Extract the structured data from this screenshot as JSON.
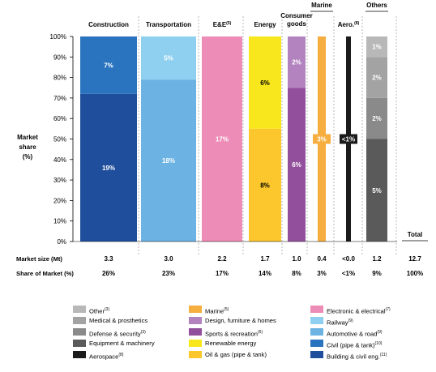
{
  "chart_data": {
    "type": "bar",
    "stacked": true,
    "normalized": true,
    "ylabel": "Market share (%)",
    "ylim": [
      0,
      100
    ],
    "yticks": [
      "0%",
      "10%",
      "20%",
      "30%",
      "40%",
      "50%",
      "60%",
      "70%",
      "80%",
      "90%",
      "100%"
    ],
    "grid": false,
    "categories": [
      {
        "name": "Construction",
        "header": "Construction",
        "market_size": "3.3",
        "share": "26%",
        "segments": [
          {
            "legend": "Building & civil eng.",
            "fraction": 0.72,
            "label": "19%",
            "color": "#1f4e9c"
          },
          {
            "legend": "Civil (pipe & tank)",
            "fraction": 0.28,
            "label": "7%",
            "color": "#2a74bf"
          }
        ]
      },
      {
        "name": "Transportation",
        "header": "Transportation",
        "market_size": "3.0",
        "share": "23%",
        "segments": [
          {
            "legend": "Automotive & road",
            "fraction": 0.79,
            "label": "18%",
            "color": "#6cb3e3"
          },
          {
            "legend": "Railway",
            "fraction": 0.21,
            "label": "5%",
            "color": "#8fd0f0"
          }
        ]
      },
      {
        "name": "E&E",
        "header": "E&E",
        "header_sup": "(5)",
        "market_size": "2.2",
        "share": "17%",
        "segments": [
          {
            "legend": "Electronic & electrical",
            "fraction": 1.0,
            "label": "17%",
            "color": "#ee8cb8"
          }
        ]
      },
      {
        "name": "Energy",
        "header": "Energy",
        "market_size": "1.7",
        "share": "14%",
        "segments": [
          {
            "legend": "Oil & gas (pipe & tank)",
            "fraction": 0.55,
            "label": "8%",
            "color": "#fcc72c"
          },
          {
            "legend": "Renewable energy",
            "fraction": 0.45,
            "label": "6%",
            "color": "#f8e71c"
          }
        ]
      },
      {
        "name": "Consumer goods",
        "header": "Consumer goods",
        "market_size": "1.0",
        "share": "8%",
        "segments": [
          {
            "legend": "Sports & recreation",
            "fraction": 0.75,
            "label": "6%",
            "color": "#92509c"
          },
          {
            "legend": "Design, furniture & homes",
            "fraction": 0.25,
            "label": "2%",
            "color": "#b383c0"
          }
        ]
      },
      {
        "name": "Marine",
        "header": "Marine",
        "market_size": "0.4",
        "share": "3%",
        "segments": [
          {
            "legend": "Marine",
            "fraction": 1.0,
            "label": "3%",
            "color": "#f5ae3f"
          }
        ]
      },
      {
        "name": "Aero.",
        "header": "Aero.",
        "header_sup": "(8)",
        "market_size": "<0.0",
        "share": "<1%",
        "segments": [
          {
            "legend": "Aerospace",
            "fraction": 1.0,
            "label": "<1%",
            "color": "#1b1b1b"
          }
        ]
      },
      {
        "name": "Others",
        "header": "Others",
        "market_size": "1.2",
        "share": "9%",
        "segments": [
          {
            "legend": "Equipment & machinery",
            "fraction": 0.5,
            "label": "5%",
            "color": "#5a5a5a"
          },
          {
            "legend": "Defense & security",
            "fraction": 0.2,
            "label": "2%",
            "color": "#8a8a8a"
          },
          {
            "legend": "Medical & prosthetics",
            "fraction": 0.2,
            "label": "2%",
            "color": "#a3a3a3"
          },
          {
            "legend": "Other",
            "fraction": 0.1,
            "label": "1%",
            "color": "#b8b8b8"
          }
        ]
      }
    ],
    "total": {
      "label": "Total",
      "market_size": "12.7",
      "share": "100%"
    },
    "rows": {
      "market_size": "Market size (Mt)",
      "share": "Share of Market (%)"
    }
  },
  "legend": {
    "columns": [
      [
        {
          "label": "Other",
          "sup": "(3)",
          "color": "#b8b8b8"
        },
        {
          "label": "Medical & prosthetics",
          "sup": "",
          "color": "#a3a3a3"
        },
        {
          "label": "Defense & security",
          "sup": "(3)",
          "color": "#8a8a8a"
        },
        {
          "label": "Equipment & machinery",
          "sup": "",
          "color": "#5a5a5a"
        },
        {
          "label": "Aerospace",
          "sup": "(8)",
          "color": "#1b1b1b"
        }
      ],
      [
        {
          "label": "Marine",
          "sup": "(5)",
          "color": "#f5ae3f"
        },
        {
          "label": "Design, furniture & homes",
          "sup": "",
          "color": "#b383c0"
        },
        {
          "label": "Sports & recreation",
          "sup": "(6)",
          "color": "#92509c"
        },
        {
          "label": "Renewable energy",
          "sup": "",
          "color": "#f8e71c"
        },
        {
          "label": "Oil & gas (pipe & tank)",
          "sup": "",
          "color": "#fcc72c"
        }
      ],
      [
        {
          "label": "Electronic & electrical",
          "sup": "(7)",
          "color": "#ee8cb8"
        },
        {
          "label": "Railway",
          "sup": "(9)",
          "color": "#8fd0f0"
        },
        {
          "label": "Automotive & road",
          "sup": "(9)",
          "color": "#6cb3e3"
        },
        {
          "label": "Civil (pipe & tank)",
          "sup": "(10)",
          "color": "#2a74bf"
        },
        {
          "label": "Building & civil eng.",
          "sup": "(11)",
          "color": "#1f4e9c"
        }
      ]
    ]
  }
}
